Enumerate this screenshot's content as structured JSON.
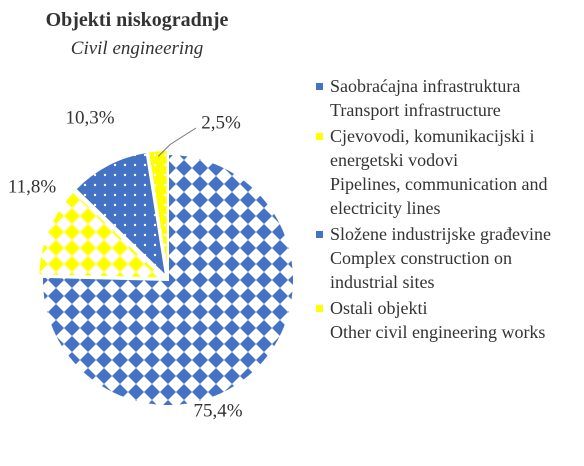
{
  "chart_data": {
    "type": "pie",
    "title": "Objekti niskogradnje",
    "subtitle": "Civil engineering",
    "categories": [
      "Saobraćajna infrastruktura",
      "Cjevovodi, komunikacijski i energetski vodovi",
      "Složene industrijske građevine",
      "Ostali objekti"
    ],
    "categories_en": [
      "Transport infrastructure",
      "Pipelines, communication and electricity lines",
      "Complex construction on industrial sites",
      "Other civil engineering works"
    ],
    "values": [
      75.4,
      11.8,
      10.3,
      2.5
    ],
    "value_labels": [
      "75,4%",
      "11,8%",
      "10,3%",
      "2,5%"
    ],
    "colors": [
      "#4472c4",
      "#ffff00",
      "#4472c4",
      "#ffff00"
    ]
  }
}
